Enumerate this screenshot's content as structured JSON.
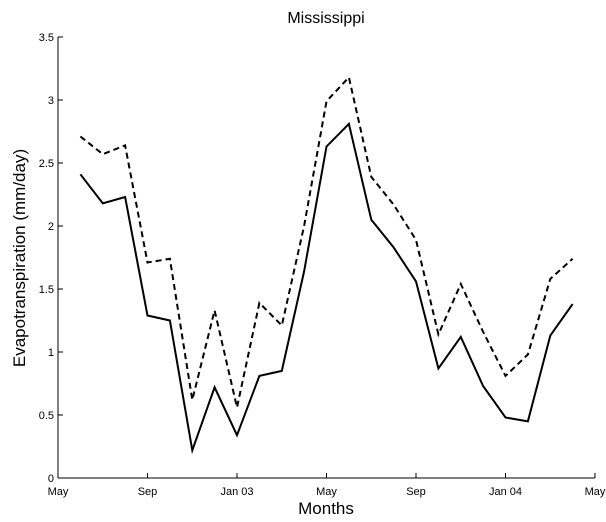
{
  "chart_data": {
    "type": "line",
    "title": "Mississippi",
    "xlabel": "Months",
    "ylabel": "Evapotranspiration (mm/day)",
    "ylim": [
      0,
      3.5
    ],
    "xlim": [
      "2002-05",
      "2004-05"
    ],
    "grid": false,
    "legend": "none",
    "x_ticks": [
      "May",
      "Sep",
      "Jan 03",
      "May",
      "Sep",
      "Jan 04",
      "May"
    ],
    "y_ticks": [
      "0",
      "0.5",
      "1",
      "1.5",
      "2",
      "2.5",
      "3",
      "3.5"
    ],
    "x": [
      "2002-06",
      "2002-07",
      "2002-08",
      "2002-09",
      "2002-10",
      "2002-11",
      "2002-12",
      "2003-01",
      "2003-02",
      "2003-03",
      "2003-04",
      "2003-05",
      "2003-06",
      "2003-07",
      "2003-08",
      "2003-09",
      "2003-10",
      "2003-11",
      "2003-12",
      "2004-01",
      "2004-02",
      "2004-03",
      "2004-04"
    ],
    "series": [
      {
        "style": "dashed",
        "color": "#000000",
        "values": [
          2.71,
          2.57,
          2.64,
          1.71,
          1.74,
          0.62,
          1.33,
          0.56,
          1.39,
          1.21,
          2.0,
          2.99,
          3.18,
          2.39,
          2.17,
          1.89,
          1.14,
          1.54,
          1.16,
          0.81,
          0.98,
          1.58,
          1.74
        ]
      },
      {
        "style": "solid",
        "color": "#000000",
        "values": [
          2.41,
          2.18,
          2.23,
          1.29,
          1.25,
          0.22,
          0.72,
          0.34,
          0.81,
          0.85,
          1.64,
          2.63,
          2.81,
          2.05,
          1.83,
          1.56,
          0.87,
          1.12,
          0.73,
          0.48,
          0.45,
          1.13,
          1.38
        ]
      }
    ]
  }
}
